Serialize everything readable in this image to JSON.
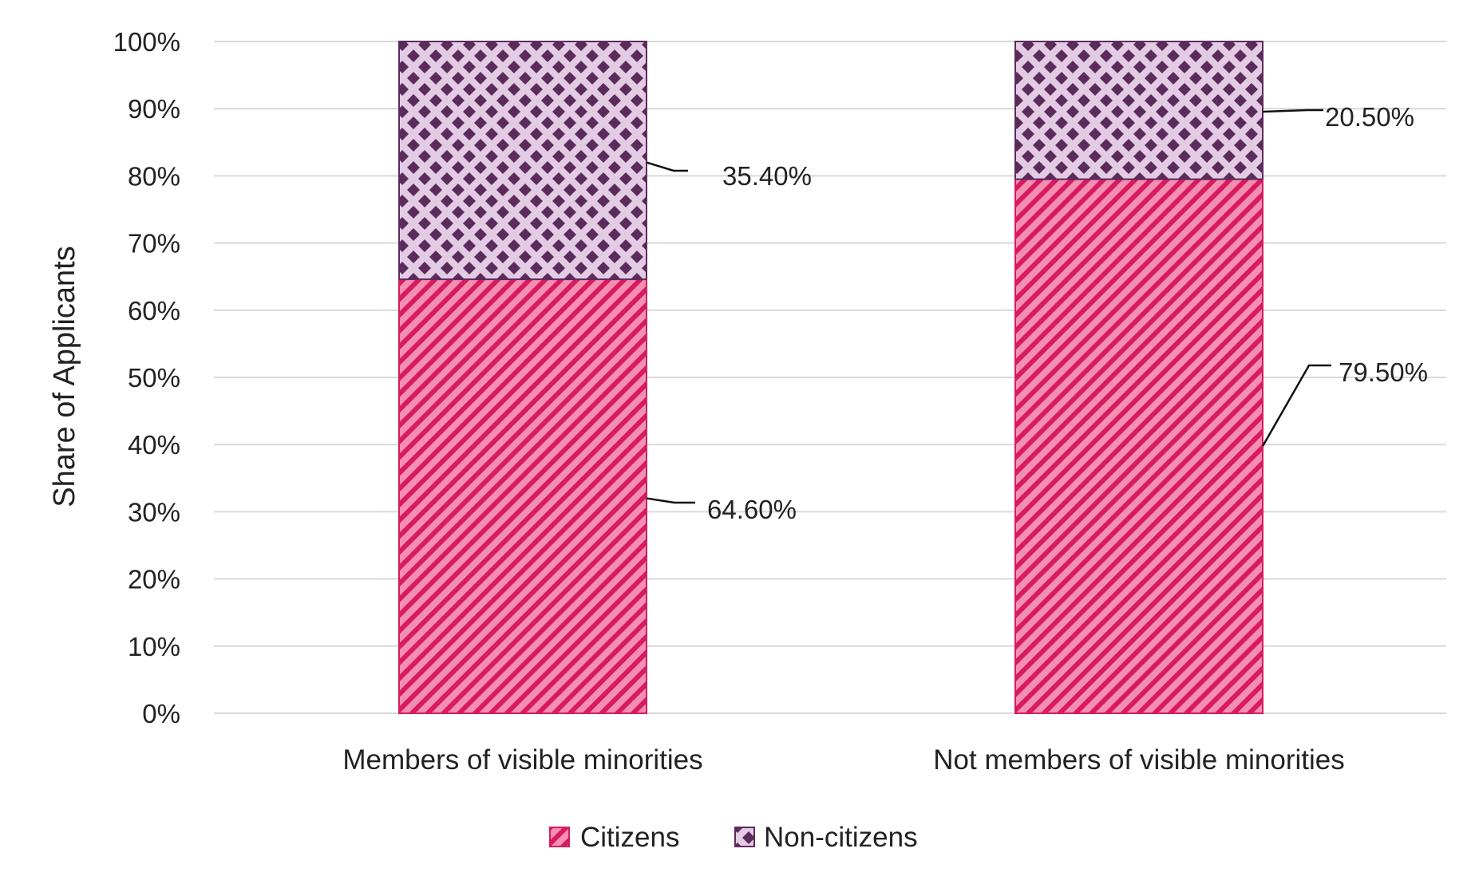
{
  "chart_data": {
    "type": "bar",
    "stacked": true,
    "categories": [
      "Members of visible minorities",
      "Not members of visible minorities"
    ],
    "series": [
      {
        "name": "Citizens",
        "values": [
          64.6,
          79.5
        ],
        "labels": [
          "64.60%",
          "79.50%"
        ],
        "fill": "#f48fb1",
        "pattern_color": "#d81b60",
        "pattern": "diagonal-stripes"
      },
      {
        "name": "Non-citizens",
        "values": [
          35.4,
          20.5
        ],
        "labels": [
          "35.40%",
          "20.50%"
        ],
        "fill": "#e4cbe4",
        "pattern_color": "#5b2c5b",
        "pattern": "diamond-dots"
      }
    ],
    "ylabel": "Share of Applicants",
    "xlabel": "",
    "ylim": [
      0,
      100
    ],
    "yticks": [
      0,
      10,
      20,
      30,
      40,
      50,
      60,
      70,
      80,
      90,
      100
    ],
    "ytick_labels": [
      "0%",
      "10%",
      "20%",
      "30%",
      "40%",
      "50%",
      "60%",
      "70%",
      "80%",
      "90%",
      "100%"
    ],
    "grid": true,
    "legend": "bottom-center",
    "gridline_color": "#d9d9d9"
  }
}
